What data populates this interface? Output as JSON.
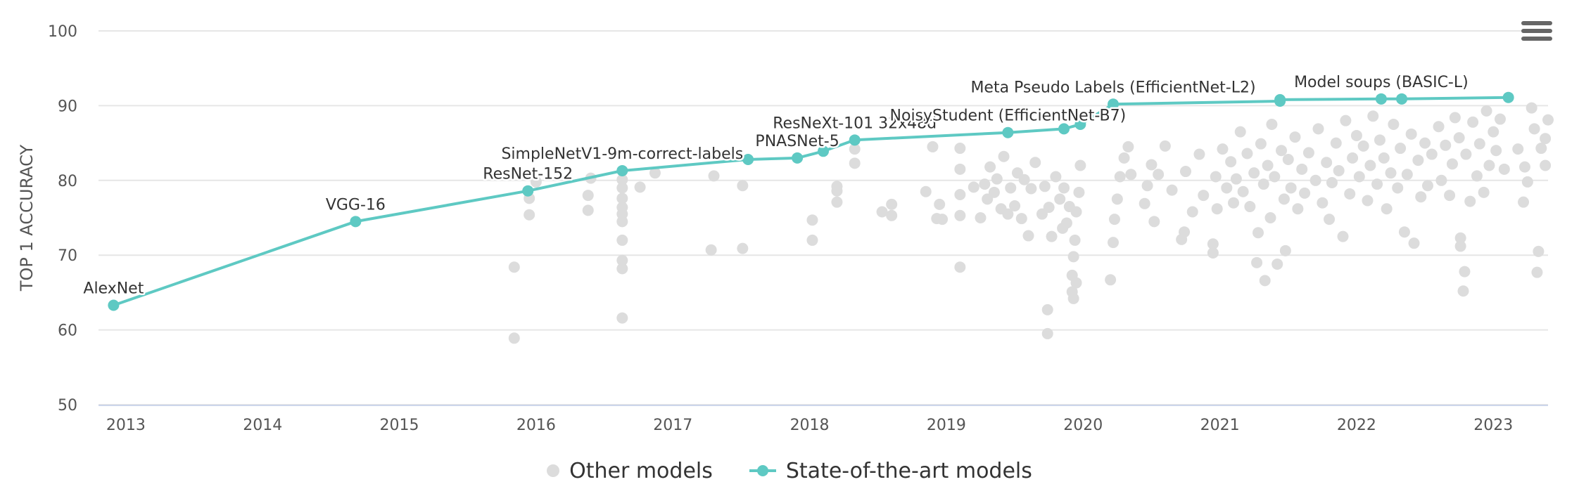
{
  "chart_data": {
    "type": "scatter",
    "title": "",
    "xlabel": "",
    "ylabel": "TOP 1 ACCURACY",
    "xlim": [
      2012.8,
      2023.4
    ],
    "ylim": [
      50,
      100
    ],
    "x_ticks": [
      2013,
      2014,
      2015,
      2016,
      2017,
      2018,
      2019,
      2020,
      2021,
      2022,
      2023
    ],
    "y_ticks": [
      50,
      60,
      70,
      80,
      90,
      100
    ],
    "grid": true,
    "legend_position": "bottom-center",
    "series": [
      {
        "name": "State-of-the-art models",
        "type": "line",
        "color": "#5ec9c3",
        "points": [
          {
            "x": 2012.91,
            "y": 63.3,
            "label": "AlexNet"
          },
          {
            "x": 2014.68,
            "y": 74.5,
            "label": "VGG-16"
          },
          {
            "x": 2015.94,
            "y": 78.6,
            "label": "ResNet-152"
          },
          {
            "x": 2016.63,
            "y": 81.3,
            "label": "SimpleNetV1-9m-correct-labels"
          },
          {
            "x": 2017.55,
            "y": 82.8,
            "label": ""
          },
          {
            "x": 2017.91,
            "y": 83.0,
            "label": "PNASNet-5"
          },
          {
            "x": 2018.1,
            "y": 83.9,
            "label": ""
          },
          {
            "x": 2018.33,
            "y": 85.4,
            "label": "ResNeXt-101 32x48d"
          },
          {
            "x": 2019.45,
            "y": 86.4,
            "label": "NoisyStudent (EfficientNet-B7)"
          },
          {
            "x": 2019.86,
            "y": 86.9,
            "label": ""
          },
          {
            "x": 2019.98,
            "y": 87.5,
            "label": ""
          },
          {
            "x": 2020.22,
            "y": 90.2,
            "label": "Meta Pseudo Labels (EfficientNet-L2)"
          },
          {
            "x": 2021.44,
            "y": 90.6,
            "label": ""
          },
          {
            "x": 2021.44,
            "y": 90.8,
            "label": ""
          },
          {
            "x": 2022.18,
            "y": 90.9,
            "label": "Model soups (BASIC-L)"
          },
          {
            "x": 2022.33,
            "y": 90.9,
            "label": ""
          },
          {
            "x": 2023.11,
            "y": 91.1,
            "label": ""
          }
        ]
      },
      {
        "name": "Other models",
        "type": "scatter",
        "color": "#dcdcdc",
        "points": [
          {
            "x": 2015.84,
            "y": 68.4
          },
          {
            "x": 2015.84,
            "y": 58.9
          },
          {
            "x": 2015.95,
            "y": 75.4
          },
          {
            "x": 2015.95,
            "y": 77.6
          },
          {
            "x": 2016.0,
            "y": 79.8
          },
          {
            "x": 2016.38,
            "y": 78.0
          },
          {
            "x": 2016.38,
            "y": 76.0
          },
          {
            "x": 2016.4,
            "y": 80.3
          },
          {
            "x": 2016.63,
            "y": 61.6
          },
          {
            "x": 2016.63,
            "y": 68.2
          },
          {
            "x": 2016.63,
            "y": 69.3
          },
          {
            "x": 2016.63,
            "y": 72.0
          },
          {
            "x": 2016.63,
            "y": 74.5
          },
          {
            "x": 2016.63,
            "y": 75.5
          },
          {
            "x": 2016.63,
            "y": 76.4
          },
          {
            "x": 2016.63,
            "y": 77.6
          },
          {
            "x": 2016.63,
            "y": 79.0
          },
          {
            "x": 2016.63,
            "y": 80.1
          },
          {
            "x": 2016.76,
            "y": 79.1
          },
          {
            "x": 2016.87,
            "y": 81.0
          },
          {
            "x": 2017.28,
            "y": 70.7
          },
          {
            "x": 2017.3,
            "y": 80.6
          },
          {
            "x": 2017.51,
            "y": 70.9
          },
          {
            "x": 2017.51,
            "y": 79.3
          },
          {
            "x": 2018.02,
            "y": 72.0
          },
          {
            "x": 2018.02,
            "y": 74.7
          },
          {
            "x": 2018.2,
            "y": 77.1
          },
          {
            "x": 2018.2,
            "y": 78.6
          },
          {
            "x": 2018.2,
            "y": 79.2
          },
          {
            "x": 2018.33,
            "y": 82.3
          },
          {
            "x": 2018.33,
            "y": 84.2
          },
          {
            "x": 2018.53,
            "y": 75.8
          },
          {
            "x": 2018.6,
            "y": 75.3
          },
          {
            "x": 2018.6,
            "y": 76.8
          },
          {
            "x": 2018.85,
            "y": 78.5
          },
          {
            "x": 2018.9,
            "y": 84.5
          },
          {
            "x": 2018.93,
            "y": 74.9
          },
          {
            "x": 2018.95,
            "y": 76.8
          },
          {
            "x": 2018.97,
            "y": 74.8
          },
          {
            "x": 2019.1,
            "y": 68.4
          },
          {
            "x": 2019.1,
            "y": 75.3
          },
          {
            "x": 2019.1,
            "y": 78.1
          },
          {
            "x": 2019.1,
            "y": 81.5
          },
          {
            "x": 2019.1,
            "y": 84.3
          },
          {
            "x": 2019.2,
            "y": 79.1
          },
          {
            "x": 2019.25,
            "y": 75.0
          },
          {
            "x": 2019.28,
            "y": 79.5
          },
          {
            "x": 2019.3,
            "y": 77.5
          },
          {
            "x": 2019.32,
            "y": 81.8
          },
          {
            "x": 2019.35,
            "y": 78.4
          },
          {
            "x": 2019.37,
            "y": 80.2
          },
          {
            "x": 2019.4,
            "y": 76.2
          },
          {
            "x": 2019.42,
            "y": 83.2
          },
          {
            "x": 2019.45,
            "y": 75.5
          },
          {
            "x": 2019.47,
            "y": 79.0
          },
          {
            "x": 2019.5,
            "y": 76.6
          },
          {
            "x": 2019.52,
            "y": 81.0
          },
          {
            "x": 2019.55,
            "y": 74.9
          },
          {
            "x": 2019.57,
            "y": 80.1
          },
          {
            "x": 2019.6,
            "y": 72.6
          },
          {
            "x": 2019.62,
            "y": 78.9
          },
          {
            "x": 2019.65,
            "y": 82.4
          },
          {
            "x": 2019.7,
            "y": 75.5
          },
          {
            "x": 2019.72,
            "y": 79.2
          },
          {
            "x": 2019.74,
            "y": 59.5
          },
          {
            "x": 2019.74,
            "y": 62.7
          },
          {
            "x": 2019.75,
            "y": 76.4
          },
          {
            "x": 2019.77,
            "y": 72.5
          },
          {
            "x": 2019.8,
            "y": 80.5
          },
          {
            "x": 2019.83,
            "y": 77.5
          },
          {
            "x": 2019.85,
            "y": 73.6
          },
          {
            "x": 2019.86,
            "y": 79.0
          },
          {
            "x": 2019.88,
            "y": 74.3
          },
          {
            "x": 2019.9,
            "y": 76.5
          },
          {
            "x": 2019.92,
            "y": 65.1
          },
          {
            "x": 2019.92,
            "y": 67.3
          },
          {
            "x": 2019.93,
            "y": 69.8
          },
          {
            "x": 2019.94,
            "y": 72.0
          },
          {
            "x": 2019.95,
            "y": 75.8
          },
          {
            "x": 2019.97,
            "y": 78.4
          },
          {
            "x": 2019.98,
            "y": 82.0
          },
          {
            "x": 2019.93,
            "y": 64.2
          },
          {
            "x": 2019.95,
            "y": 66.3
          },
          {
            "x": 2020.2,
            "y": 66.7
          },
          {
            "x": 2020.22,
            "y": 71.7
          },
          {
            "x": 2020.23,
            "y": 74.8
          },
          {
            "x": 2020.25,
            "y": 77.5
          },
          {
            "x": 2020.27,
            "y": 80.5
          },
          {
            "x": 2020.3,
            "y": 83.0
          },
          {
            "x": 2020.33,
            "y": 84.5
          },
          {
            "x": 2020.35,
            "y": 80.8
          },
          {
            "x": 2020.45,
            "y": 76.9
          },
          {
            "x": 2020.47,
            "y": 79.3
          },
          {
            "x": 2020.5,
            "y": 82.1
          },
          {
            "x": 2020.52,
            "y": 74.5
          },
          {
            "x": 2020.55,
            "y": 80.8
          },
          {
            "x": 2020.6,
            "y": 84.6
          },
          {
            "x": 2020.65,
            "y": 78.7
          },
          {
            "x": 2020.72,
            "y": 72.1
          },
          {
            "x": 2020.74,
            "y": 73.1
          },
          {
            "x": 2020.75,
            "y": 81.2
          },
          {
            "x": 2020.8,
            "y": 75.8
          },
          {
            "x": 2020.85,
            "y": 83.5
          },
          {
            "x": 2020.88,
            "y": 78.0
          },
          {
            "x": 2020.95,
            "y": 71.5
          },
          {
            "x": 2020.95,
            "y": 70.3
          },
          {
            "x": 2020.97,
            "y": 80.5
          },
          {
            "x": 2020.98,
            "y": 76.2
          },
          {
            "x": 2021.02,
            "y": 84.2
          },
          {
            "x": 2021.05,
            "y": 79.0
          },
          {
            "x": 2021.08,
            "y": 82.5
          },
          {
            "x": 2021.1,
            "y": 77.0
          },
          {
            "x": 2021.12,
            "y": 80.2
          },
          {
            "x": 2021.15,
            "y": 86.5
          },
          {
            "x": 2021.17,
            "y": 78.5
          },
          {
            "x": 2021.2,
            "y": 83.6
          },
          {
            "x": 2021.22,
            "y": 76.5
          },
          {
            "x": 2021.25,
            "y": 81.0
          },
          {
            "x": 2021.27,
            "y": 69.0
          },
          {
            "x": 2021.28,
            "y": 73.0
          },
          {
            "x": 2021.3,
            "y": 84.9
          },
          {
            "x": 2021.32,
            "y": 79.5
          },
          {
            "x": 2021.33,
            "y": 66.6
          },
          {
            "x": 2021.35,
            "y": 82.0
          },
          {
            "x": 2021.37,
            "y": 75.0
          },
          {
            "x": 2021.38,
            "y": 87.5
          },
          {
            "x": 2021.4,
            "y": 80.5
          },
          {
            "x": 2021.42,
            "y": 68.8
          },
          {
            "x": 2021.45,
            "y": 84.0
          },
          {
            "x": 2021.47,
            "y": 77.5
          },
          {
            "x": 2021.48,
            "y": 70.6
          },
          {
            "x": 2021.5,
            "y": 82.8
          },
          {
            "x": 2021.52,
            "y": 79.0
          },
          {
            "x": 2021.55,
            "y": 85.8
          },
          {
            "x": 2021.57,
            "y": 76.2
          },
          {
            "x": 2021.6,
            "y": 81.5
          },
          {
            "x": 2021.62,
            "y": 78.3
          },
          {
            "x": 2021.65,
            "y": 83.7
          },
          {
            "x": 2021.7,
            "y": 80.0
          },
          {
            "x": 2021.72,
            "y": 86.9
          },
          {
            "x": 2021.75,
            "y": 77.0
          },
          {
            "x": 2021.78,
            "y": 82.4
          },
          {
            "x": 2021.8,
            "y": 74.8
          },
          {
            "x": 2021.82,
            "y": 79.7
          },
          {
            "x": 2021.85,
            "y": 85.0
          },
          {
            "x": 2021.87,
            "y": 81.3
          },
          {
            "x": 2021.9,
            "y": 72.5
          },
          {
            "x": 2021.92,
            "y": 88.0
          },
          {
            "x": 2021.95,
            "y": 78.2
          },
          {
            "x": 2021.97,
            "y": 83.0
          },
          {
            "x": 2022.0,
            "y": 86.0
          },
          {
            "x": 2022.02,
            "y": 80.5
          },
          {
            "x": 2022.05,
            "y": 84.6
          },
          {
            "x": 2022.08,
            "y": 77.3
          },
          {
            "x": 2022.1,
            "y": 82.0
          },
          {
            "x": 2022.12,
            "y": 88.6
          },
          {
            "x": 2022.15,
            "y": 79.5
          },
          {
            "x": 2022.17,
            "y": 85.4
          },
          {
            "x": 2022.2,
            "y": 83.0
          },
          {
            "x": 2022.22,
            "y": 76.2
          },
          {
            "x": 2022.25,
            "y": 81.0
          },
          {
            "x": 2022.27,
            "y": 87.5
          },
          {
            "x": 2022.3,
            "y": 79.0
          },
          {
            "x": 2022.32,
            "y": 84.3
          },
          {
            "x": 2022.35,
            "y": 73.1
          },
          {
            "x": 2022.37,
            "y": 80.8
          },
          {
            "x": 2022.4,
            "y": 86.2
          },
          {
            "x": 2022.42,
            "y": 71.6
          },
          {
            "x": 2022.45,
            "y": 82.7
          },
          {
            "x": 2022.47,
            "y": 77.8
          },
          {
            "x": 2022.5,
            "y": 85.0
          },
          {
            "x": 2022.52,
            "y": 79.3
          },
          {
            "x": 2022.55,
            "y": 83.5
          },
          {
            "x": 2022.6,
            "y": 87.2
          },
          {
            "x": 2022.62,
            "y": 80.0
          },
          {
            "x": 2022.65,
            "y": 84.7
          },
          {
            "x": 2022.68,
            "y": 78.0
          },
          {
            "x": 2022.7,
            "y": 82.2
          },
          {
            "x": 2022.72,
            "y": 88.4
          },
          {
            "x": 2022.75,
            "y": 85.7
          },
          {
            "x": 2022.76,
            "y": 72.3
          },
          {
            "x": 2022.76,
            "y": 71.2
          },
          {
            "x": 2022.78,
            "y": 65.2
          },
          {
            "x": 2022.79,
            "y": 67.8
          },
          {
            "x": 2022.8,
            "y": 83.5
          },
          {
            "x": 2022.83,
            "y": 77.2
          },
          {
            "x": 2022.85,
            "y": 87.8
          },
          {
            "x": 2022.88,
            "y": 80.6
          },
          {
            "x": 2022.9,
            "y": 84.9
          },
          {
            "x": 2022.93,
            "y": 78.4
          },
          {
            "x": 2022.95,
            "y": 89.3
          },
          {
            "x": 2022.97,
            "y": 82.0
          },
          {
            "x": 2023.0,
            "y": 86.5
          },
          {
            "x": 2023.02,
            "y": 84.0
          },
          {
            "x": 2023.05,
            "y": 88.2
          },
          {
            "x": 2023.08,
            "y": 81.5
          },
          {
            "x": 2023.18,
            "y": 84.2
          },
          {
            "x": 2023.22,
            "y": 77.1
          },
          {
            "x": 2023.23,
            "y": 81.8
          },
          {
            "x": 2023.25,
            "y": 79.8
          },
          {
            "x": 2023.28,
            "y": 89.7
          },
          {
            "x": 2023.3,
            "y": 86.9
          },
          {
            "x": 2023.32,
            "y": 67.7
          },
          {
            "x": 2023.33,
            "y": 70.5
          },
          {
            "x": 2023.35,
            "y": 84.3
          },
          {
            "x": 2023.38,
            "y": 82.0
          },
          {
            "x": 2023.38,
            "y": 85.6
          },
          {
            "x": 2023.4,
            "y": 88.1
          }
        ]
      }
    ]
  },
  "legend": {
    "other_label": "Other models",
    "sota_label": "State-of-the-art models"
  },
  "menu": {
    "icon": "hamburger-menu-icon"
  }
}
